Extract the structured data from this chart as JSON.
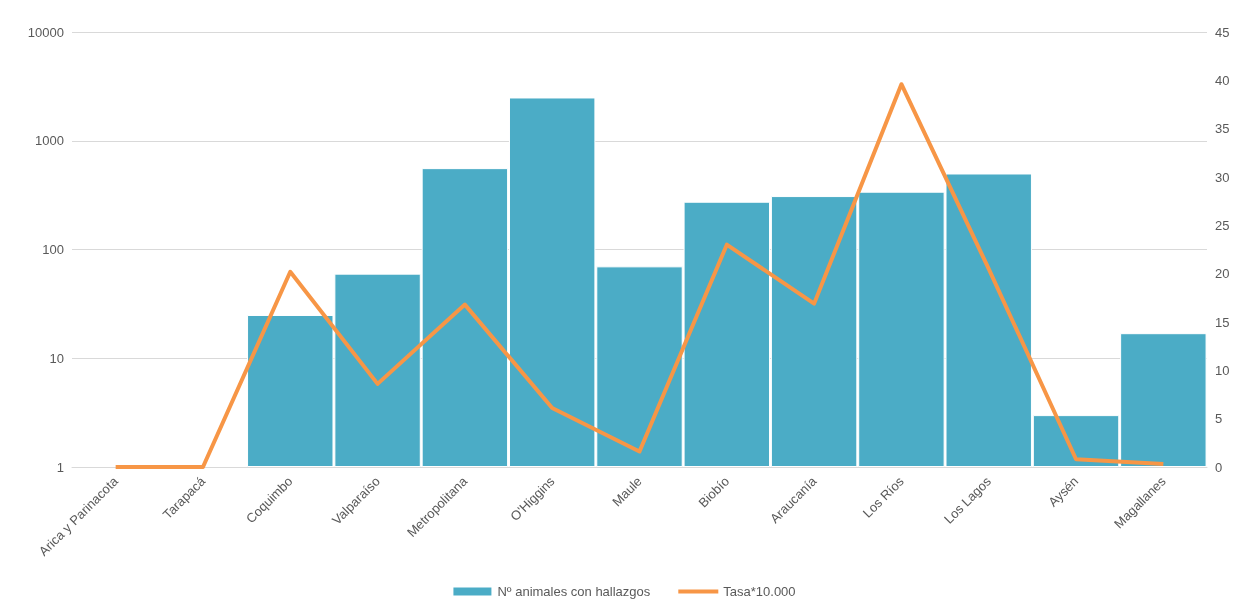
{
  "chart_data": {
    "type": "bar",
    "categories": [
      "Arica y Parinacota",
      "Tarapacá",
      "Coquimbo",
      "Valparaíso",
      "Metropolitana",
      "O'Higgins",
      "Maule",
      "Biobío",
      "Araucanía",
      "Los Ríos",
      "Los Lagos",
      "Aysén",
      "Magallanes"
    ],
    "series": [
      {
        "name": "Nº animales con hallazgos",
        "color": "#4bacc6",
        "values": [
          null,
          null,
          25,
          60,
          560,
          2500,
          70,
          275,
          310,
          340,
          500,
          3,
          17
        ]
      },
      {
        "name": "Tasa*10.000",
        "type": "line",
        "axis": "y2",
        "color": "#f79646",
        "marker": "none",
        "values": [
          0,
          0,
          20.2,
          8.6,
          16.8,
          6.1,
          1.6,
          23.0,
          16.9,
          39.6,
          20.5,
          0.8,
          0.3
        ]
      }
    ],
    "log": "y",
    "ylim": [
      1,
      10000
    ],
    "yticks": [
      1,
      10,
      100,
      1000,
      10000
    ],
    "y2lim": [
      0,
      45
    ],
    "y2ticks": [
      0,
      5,
      10,
      15,
      20,
      25,
      30,
      35,
      40,
      45
    ],
    "grid": "y",
    "legend": "bottom"
  }
}
